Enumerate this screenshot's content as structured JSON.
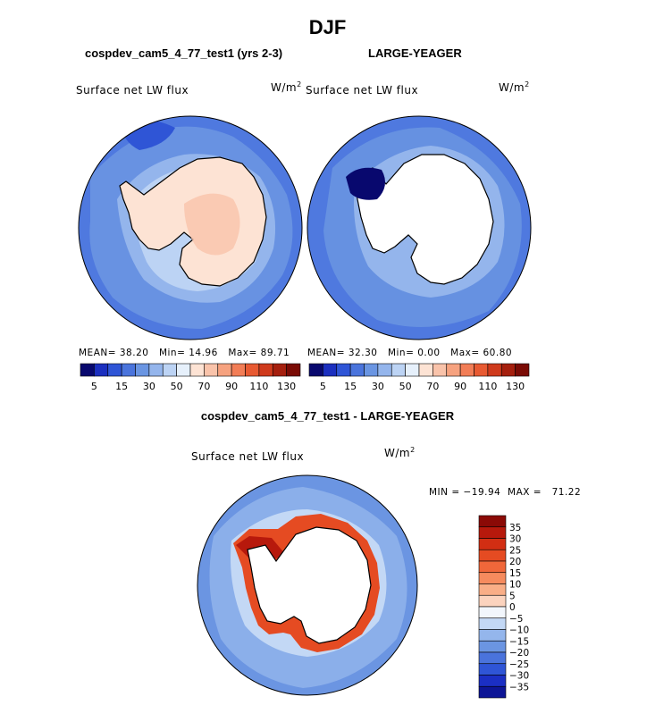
{
  "season": "DJF",
  "panel_left": {
    "title": "cospdev_cam5_4_77_test1 (yrs 2-3)",
    "variable": "Surface net LW flux",
    "units": "W/m",
    "units_sup": "2",
    "stats": {
      "mean_label": "MEAN=",
      "mean": "38.20",
      "min_label": "Min=",
      "min": "14.96",
      "max_label": "Max=",
      "max": "89.71"
    }
  },
  "panel_right": {
    "title": "LARGE-YEAGER",
    "variable": "Surface net LW flux",
    "units": "W/m",
    "units_sup": "2",
    "stats": {
      "mean_label": "MEAN=",
      "mean": "32.30",
      "min_label": "Min=",
      "min": "0.00",
      "max_label": "Max=",
      "max": "60.80"
    }
  },
  "panel_diff": {
    "title": "cospdev_cam5_4_77_test1 - LARGE-YEAGER",
    "variable": "Surface net LW flux",
    "units": "W/m",
    "units_sup": "2",
    "minmax_text": "MIN = −19.94  MAX =   71.22"
  },
  "abs_colorbar": {
    "labels": [
      "5",
      "15",
      "30",
      "50",
      "70",
      "90",
      "110",
      "130"
    ],
    "colors": [
      "#08086e",
      "#1b2fbf",
      "#2f55d6",
      "#4a74dc",
      "#6a95e2",
      "#94b5ec",
      "#bcd3f4",
      "#e6f0fb",
      "#fde3d4",
      "#f9c3aa",
      "#f6a27f",
      "#f27d56",
      "#e85a32",
      "#cf3a1c",
      "#a51f0e",
      "#7a0b05"
    ]
  },
  "diff_colorbar": {
    "labels": [
      "35",
      "30",
      "25",
      "20",
      "15",
      "10",
      "5",
      "0",
      "−5",
      "−10",
      "−15",
      "−20",
      "−25",
      "−30",
      "−35"
    ],
    "colors": [
      "#8b0a06",
      "#b7190c",
      "#d22e13",
      "#e54b22",
      "#f0673a",
      "#f68b5e",
      "#f9ae87",
      "#fbd3be",
      "#f2f6fc",
      "#c3d8f5",
      "#94b6ec",
      "#6b95e2",
      "#4a73dc",
      "#2f55d6",
      "#1b2fc4",
      "#0d1596"
    ]
  }
}
